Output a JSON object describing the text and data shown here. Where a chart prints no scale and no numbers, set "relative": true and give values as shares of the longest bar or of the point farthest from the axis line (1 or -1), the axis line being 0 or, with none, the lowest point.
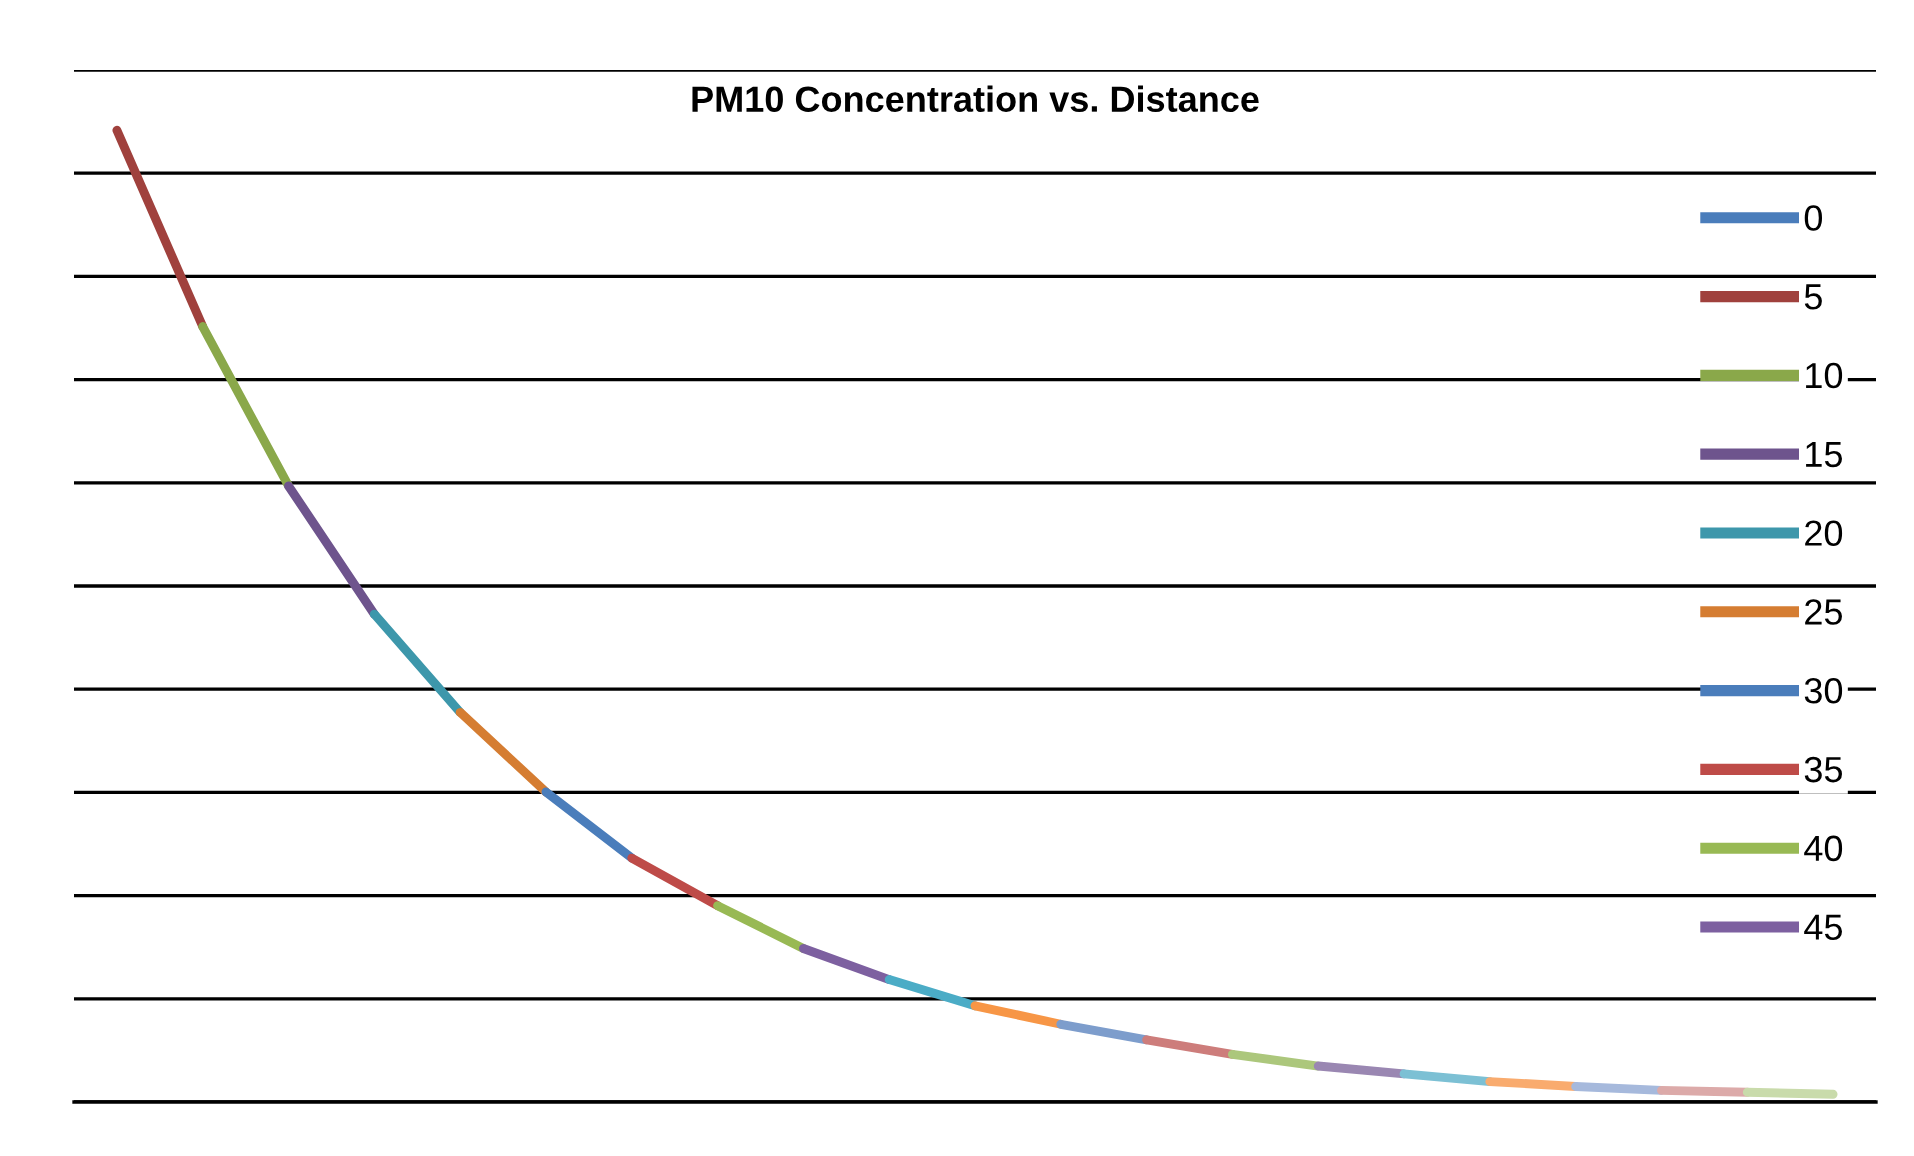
{
  "chart_data": {
    "type": "line",
    "title": "PM10 Concentration vs. Distance",
    "relative": true,
    "grid": "y",
    "legend": "right",
    "marker": "none",
    "line_style": "solid",
    "categories": [
      null,
      null,
      null,
      null,
      null,
      null,
      null,
      null,
      null,
      null,
      null,
      null,
      null,
      null,
      null,
      null,
      null,
      null,
      null,
      null,
      null
    ],
    "series": [
      {
        "name": "0",
        "color": "#4a7dbb",
        "values": [
          null,
          null,
          null,
          null,
          null,
          null,
          null,
          null,
          null,
          null,
          null,
          null,
          null,
          null,
          null,
          null,
          null,
          null,
          null,
          null,
          null
        ]
      },
      {
        "name": "5",
        "color": "#a0413d",
        "values": [
          1.0,
          0.798,
          null,
          null,
          null,
          null,
          null,
          null,
          null,
          null,
          null,
          null,
          null,
          null,
          null,
          null,
          null,
          null,
          null,
          null,
          null
        ]
      },
      {
        "name": "10",
        "color": "#8aa84a",
        "values": [
          null,
          0.798,
          0.634,
          null,
          null,
          null,
          null,
          null,
          null,
          null,
          null,
          null,
          null,
          null,
          null,
          null,
          null,
          null,
          null,
          null,
          null
        ]
      },
      {
        "name": "15",
        "color": "#6e548d",
        "values": [
          null,
          null,
          0.634,
          0.502,
          null,
          null,
          null,
          null,
          null,
          null,
          null,
          null,
          null,
          null,
          null,
          null,
          null,
          null,
          null,
          null,
          null
        ]
      },
      {
        "name": "20",
        "color": "#3d97ab",
        "values": [
          null,
          null,
          null,
          0.502,
          0.401,
          null,
          null,
          null,
          null,
          null,
          null,
          null,
          null,
          null,
          null,
          null,
          null,
          null,
          null,
          null,
          null
        ]
      },
      {
        "name": "25",
        "color": "#d57d32",
        "values": [
          null,
          null,
          null,
          null,
          0.401,
          0.319,
          null,
          null,
          null,
          null,
          null,
          null,
          null,
          null,
          null,
          null,
          null,
          null,
          null,
          null,
          null
        ]
      },
      {
        "name": "30",
        "color": "#4a7dbb",
        "values": [
          null,
          null,
          null,
          null,
          null,
          0.319,
          0.251,
          null,
          null,
          null,
          null,
          null,
          null,
          null,
          null,
          null,
          null,
          null,
          null,
          null,
          null
        ]
      },
      {
        "name": "35",
        "color": "#be4b48",
        "values": [
          null,
          null,
          null,
          null,
          null,
          null,
          0.251,
          0.202,
          null,
          null,
          null,
          null,
          null,
          null,
          null,
          null,
          null,
          null,
          null,
          null,
          null
        ]
      },
      {
        "name": "40",
        "color": "#98b954",
        "values": [
          null,
          null,
          null,
          null,
          null,
          null,
          null,
          0.202,
          0.158,
          null,
          null,
          null,
          null,
          null,
          null,
          null,
          null,
          null,
          null,
          null,
          null
        ]
      },
      {
        "name": "45",
        "color": "#7d60a0",
        "values": [
          null,
          null,
          null,
          null,
          null,
          null,
          null,
          null,
          0.158,
          0.126,
          null,
          null,
          null,
          null,
          null,
          null,
          null,
          null,
          null,
          null,
          null
        ]
      },
      {
        "color": "#4bacc6",
        "values": [
          null,
          null,
          null,
          null,
          null,
          null,
          null,
          null,
          null,
          0.126,
          0.099,
          null,
          null,
          null,
          null,
          null,
          null,
          null,
          null,
          null,
          null
        ]
      },
      {
        "color": "#f79646",
        "values": [
          null,
          null,
          null,
          null,
          null,
          null,
          null,
          null,
          null,
          null,
          0.099,
          0.08,
          null,
          null,
          null,
          null,
          null,
          null,
          null,
          null,
          null
        ]
      },
      {
        "color": "#7d9dcc",
        "values": [
          null,
          null,
          null,
          null,
          null,
          null,
          null,
          null,
          null,
          null,
          null,
          0.08,
          0.064,
          null,
          null,
          null,
          null,
          null,
          null,
          null,
          null
        ]
      },
      {
        "color": "#cd7d7b",
        "values": [
          null,
          null,
          null,
          null,
          null,
          null,
          null,
          null,
          null,
          null,
          null,
          null,
          0.064,
          0.049,
          null,
          null,
          null,
          null,
          null,
          null,
          null
        ]
      },
      {
        "color": "#acc77c",
        "values": [
          null,
          null,
          null,
          null,
          null,
          null,
          null,
          null,
          null,
          null,
          null,
          null,
          null,
          0.049,
          0.037,
          null,
          null,
          null,
          null,
          null,
          null
        ]
      },
      {
        "color": "#9a87b2",
        "values": [
          null,
          null,
          null,
          null,
          null,
          null,
          null,
          null,
          null,
          null,
          null,
          null,
          null,
          null,
          0.037,
          0.029,
          null,
          null,
          null,
          null,
          null
        ]
      },
      {
        "color": "#7cc0d4",
        "values": [
          null,
          null,
          null,
          null,
          null,
          null,
          null,
          null,
          null,
          null,
          null,
          null,
          null,
          null,
          null,
          0.029,
          0.021,
          null,
          null,
          null,
          null
        ]
      },
      {
        "color": "#f9ab6e",
        "values": [
          null,
          null,
          null,
          null,
          null,
          null,
          null,
          null,
          null,
          null,
          null,
          null,
          null,
          null,
          null,
          null,
          0.021,
          0.016,
          null,
          null,
          null
        ]
      },
      {
        "color": "#a6b9dc",
        "values": [
          null,
          null,
          null,
          null,
          null,
          null,
          null,
          null,
          null,
          null,
          null,
          null,
          null,
          null,
          null,
          null,
          null,
          0.016,
          0.012,
          null,
          null
        ]
      },
      {
        "color": "#dcaaa9",
        "values": [
          null,
          null,
          null,
          null,
          null,
          null,
          null,
          null,
          null,
          null,
          null,
          null,
          null,
          null,
          null,
          null,
          null,
          null,
          0.012,
          0.01,
          null
        ]
      },
      {
        "color": "#c9dbab",
        "values": [
          null,
          null,
          null,
          null,
          null,
          null,
          null,
          null,
          null,
          null,
          null,
          null,
          null,
          null,
          null,
          null,
          null,
          null,
          null,
          0.01,
          0.008
        ]
      }
    ]
  }
}
